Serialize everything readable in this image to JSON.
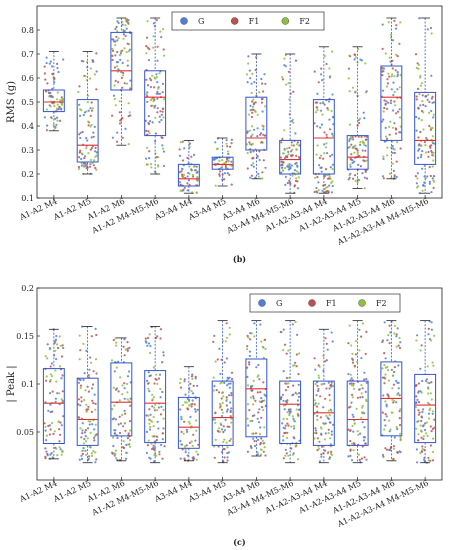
{
  "chart_data": [
    {
      "type": "boxplot",
      "caption": "(b)",
      "ylabel": "RMS (g)",
      "ylim": [
        0.1,
        0.9
      ],
      "yticks": [
        0.1,
        0.2,
        0.3,
        0.4,
        0.5,
        0.6,
        0.7,
        0.8
      ],
      "categories": [
        "A1-A2 M4",
        "A1-A2 M5",
        "A1-A2 M6",
        "A1-A2 M4-M5-M6",
        "A3-A4 M4",
        "A3-A4 M5",
        "A3-A4 M6",
        "A3-A4 M4-M5-M6",
        "A1-A2-A3-A4 M4",
        "A1-A2-A3-A4 M5",
        "A1-A2-A3-A4 M6",
        "A1-A2-A3-A4 M4-M5-M6"
      ],
      "legend": {
        "placement": "top-center",
        "entries": [
          "G",
          "F1",
          "F2"
        ]
      },
      "series_colors": {
        "G": "#4f7fd8",
        "F1": "#c0504d",
        "F2": "#8fbf3f"
      },
      "boxes": [
        {
          "q1": 0.46,
          "median": 0.5,
          "q3": 0.55,
          "whisker_low": 0.38,
          "whisker_high": 0.71
        },
        {
          "q1": 0.25,
          "median": 0.32,
          "q3": 0.51,
          "whisker_low": 0.2,
          "whisker_high": 0.71
        },
        {
          "q1": 0.55,
          "median": 0.63,
          "q3": 0.79,
          "whisker_low": 0.32,
          "whisker_high": 0.85
        },
        {
          "q1": 0.36,
          "median": 0.52,
          "q3": 0.63,
          "whisker_low": 0.2,
          "whisker_high": 0.85
        },
        {
          "q1": 0.15,
          "median": 0.18,
          "q3": 0.24,
          "whisker_low": 0.12,
          "whisker_high": 0.34
        },
        {
          "q1": 0.22,
          "median": 0.24,
          "q3": 0.27,
          "whisker_low": 0.15,
          "whisker_high": 0.35
        },
        {
          "q1": 0.3,
          "median": 0.35,
          "q3": 0.52,
          "whisker_low": 0.18,
          "whisker_high": 0.7
        },
        {
          "q1": 0.2,
          "median": 0.26,
          "q3": 0.34,
          "whisker_low": 0.12,
          "whisker_high": 0.7
        },
        {
          "q1": 0.2,
          "median": 0.35,
          "q3": 0.51,
          "whisker_low": 0.12,
          "whisker_high": 0.73
        },
        {
          "q1": 0.22,
          "median": 0.27,
          "q3": 0.36,
          "whisker_low": 0.14,
          "whisker_high": 0.73
        },
        {
          "q1": 0.34,
          "median": 0.52,
          "q3": 0.65,
          "whisker_low": 0.18,
          "whisker_high": 0.85
        },
        {
          "q1": 0.24,
          "median": 0.34,
          "q3": 0.54,
          "whisker_low": 0.12,
          "whisker_high": 0.85
        }
      ]
    },
    {
      "type": "boxplot",
      "caption": "(c)",
      "ylabel": "| Peak |",
      "ylim": [
        0.0,
        0.2
      ],
      "yticks": [
        0.05,
        0.1,
        0.15,
        0.2
      ],
      "categories": [
        "A1-A2 M4",
        "A1-A2 M5",
        "A1-A2 M6",
        "A1-A2 M4-M5-M6",
        "A3-A4 M4",
        "A3-A4 M5",
        "A3-A4 M6",
        "A3-A4 M4-M5-M6",
        "A1-A2-A3-A4 M4",
        "A1-A2-A3-A4 M5",
        "A1-A2-A3-A4 M6",
        "A1-A2-A3-A4 M4-M5-M6"
      ],
      "legend": {
        "placement": "top-right",
        "entries": [
          "G",
          "F1",
          "F2"
        ]
      },
      "series_colors": {
        "G": "#4f7fd8",
        "F1": "#c0504d",
        "F2": "#8fbf3f"
      },
      "boxes": [
        {
          "q1": 0.038,
          "median": 0.08,
          "q3": 0.116,
          "whisker_low": 0.022,
          "whisker_high": 0.157
        },
        {
          "q1": 0.036,
          "median": 0.063,
          "q3": 0.106,
          "whisker_low": 0.018,
          "whisker_high": 0.16
        },
        {
          "q1": 0.046,
          "median": 0.081,
          "q3": 0.122,
          "whisker_low": 0.02,
          "whisker_high": 0.148
        },
        {
          "q1": 0.039,
          "median": 0.08,
          "q3": 0.114,
          "whisker_low": 0.018,
          "whisker_high": 0.16
        },
        {
          "q1": 0.033,
          "median": 0.055,
          "q3": 0.086,
          "whisker_low": 0.02,
          "whisker_high": 0.118
        },
        {
          "q1": 0.036,
          "median": 0.065,
          "q3": 0.103,
          "whisker_low": 0.018,
          "whisker_high": 0.166
        },
        {
          "q1": 0.045,
          "median": 0.095,
          "q3": 0.126,
          "whisker_low": 0.025,
          "whisker_high": 0.166
        },
        {
          "q1": 0.038,
          "median": 0.079,
          "q3": 0.103,
          "whisker_low": 0.018,
          "whisker_high": 0.166
        },
        {
          "q1": 0.036,
          "median": 0.07,
          "q3": 0.103,
          "whisker_low": 0.018,
          "whisker_high": 0.157
        },
        {
          "q1": 0.036,
          "median": 0.063,
          "q3": 0.103,
          "whisker_low": 0.018,
          "whisker_high": 0.166
        },
        {
          "q1": 0.046,
          "median": 0.085,
          "q3": 0.123,
          "whisker_low": 0.02,
          "whisker_high": 0.166
        },
        {
          "q1": 0.039,
          "median": 0.078,
          "q3": 0.11,
          "whisker_low": 0.018,
          "whisker_high": 0.166
        }
      ]
    }
  ]
}
